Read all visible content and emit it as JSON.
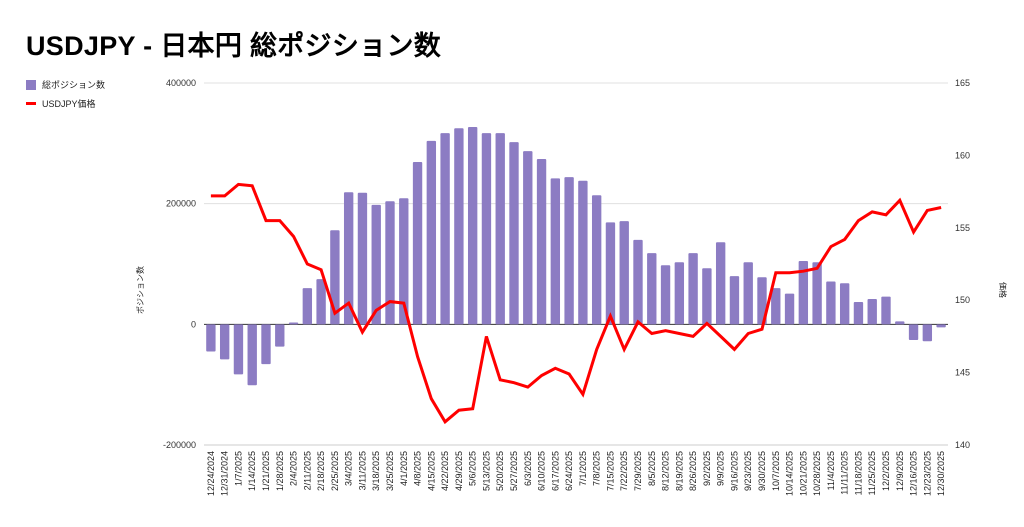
{
  "chart_data": {
    "type": "bar",
    "title": "USDJPY - 日本円 総ポジション数",
    "ylabel": "ポジション数",
    "y2label": "価格",
    "xlabel": "",
    "ylim": [
      -200000,
      400000
    ],
    "y_ticks": [
      "400000",
      "200000",
      "0",
      "-200000"
    ],
    "y2lim": [
      140,
      165
    ],
    "y2_ticks": [
      "165",
      "160",
      "155",
      "150",
      "145",
      "140"
    ],
    "grid": true,
    "legend_placement": "top-left",
    "colors": {
      "bar": "#8c7cc3",
      "line": "#ff0000"
    },
    "categories": [
      "12/24/2024",
      "12/31/2024",
      "1/7/2025",
      "1/14/2025",
      "1/21/2025",
      "1/28/2025",
      "2/4/2025",
      "2/11/2025",
      "2/18/2025",
      "2/25/2025",
      "3/4/2025",
      "3/11/2025",
      "3/18/2025",
      "3/25/2025",
      "4/1/2025",
      "4/8/2025",
      "4/15/2025",
      "4/22/2025",
      "4/29/2025",
      "5/6/2025",
      "5/13/2025",
      "5/20/2025",
      "5/27/2025",
      "6/3/2025",
      "6/10/2025",
      "6/17/2025",
      "6/24/2025",
      "7/1/2025",
      "7/8/2025",
      "7/15/2025",
      "7/22/2025",
      "7/29/2025",
      "8/5/2025",
      "8/12/2025",
      "8/19/2025",
      "8/26/2025",
      "9/2/2025",
      "9/9/2025",
      "9/16/2025",
      "9/23/2025",
      "9/30/2025",
      "10/7/2025",
      "10/14/2025",
      "10/21/2025",
      "10/28/2025",
      "11/4/2025",
      "11/11/2025",
      "11/18/2025",
      "11/25/2025",
      "12/2/2025",
      "12/9/2025",
      "12/16/2025",
      "12/23/2025",
      "12/30/2025"
    ],
    "series": [
      {
        "name": "総ポジション数",
        "type": "bar",
        "axis": "left",
        "values": [
          -45000,
          -58000,
          -83000,
          -101000,
          -66000,
          -37000,
          3000,
          60000,
          75000,
          156000,
          219000,
          218000,
          198000,
          204000,
          209000,
          269000,
          304000,
          317000,
          325000,
          327000,
          317000,
          317000,
          302000,
          287000,
          274000,
          242000,
          244000,
          238000,
          214000,
          169000,
          171000,
          140000,
          118000,
          98000,
          103000,
          118000,
          93000,
          136000,
          80000,
          103000,
          78000,
          60000,
          51000,
          105000,
          103000,
          71000,
          68000,
          37000,
          42000,
          46000,
          5000,
          -26000,
          -28000,
          -5000
        ]
      },
      {
        "name": "USDJPY価格",
        "type": "line",
        "axis": "right",
        "values": [
          157.2,
          157.2,
          158.0,
          157.9,
          155.5,
          155.5,
          154.4,
          152.5,
          152.1,
          149.1,
          149.8,
          147.8,
          149.3,
          149.9,
          149.8,
          146.1,
          143.2,
          141.6,
          142.4,
          142.5,
          147.5,
          144.5,
          144.3,
          144.0,
          144.8,
          145.3,
          144.9,
          143.5,
          146.6,
          148.9,
          146.6,
          148.5,
          147.7,
          147.9,
          147.7,
          147.5,
          148.4,
          147.5,
          146.6,
          147.7,
          148.0,
          151.9,
          151.9,
          152.0,
          152.2,
          153.7,
          154.2,
          155.5,
          156.1,
          155.9,
          156.9,
          154.7,
          156.2,
          156.4
        ]
      }
    ]
  }
}
